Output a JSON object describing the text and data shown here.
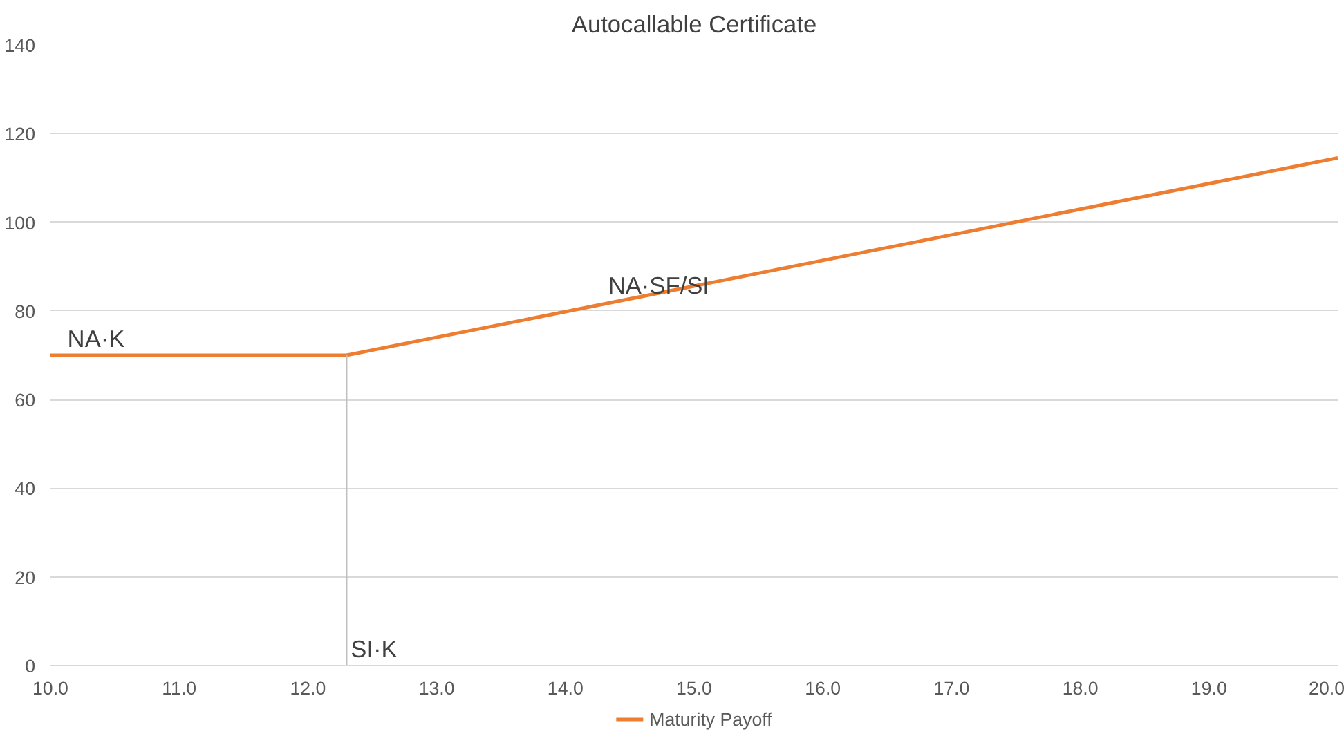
{
  "chart_data": {
    "type": "line",
    "title": "Autocallable Certificate",
    "series": [
      {
        "name": "Maturity Payoff",
        "color": "#ed7d31",
        "x": [
          10,
          12.3,
          20
        ],
        "values": [
          70,
          70,
          114.5
        ]
      },
      {
        "color": "#bfbfbf",
        "x": [
          12.3,
          12.3
        ],
        "values": [
          0,
          70
        ]
      }
    ],
    "xlim": [
      10,
      20
    ],
    "xticks": [
      {
        "value": 10,
        "label": "10.0"
      },
      {
        "value": 11,
        "label": "11.0"
      },
      {
        "value": 12,
        "label": "12.0"
      },
      {
        "value": 13,
        "label": "13.0"
      },
      {
        "value": 14,
        "label": "14.0"
      },
      {
        "value": 15,
        "label": "15.0"
      },
      {
        "value": 16,
        "label": "16.0"
      },
      {
        "value": 17,
        "label": "17.0"
      },
      {
        "value": 18,
        "label": "18.0"
      },
      {
        "value": 19,
        "label": "19.0"
      },
      {
        "value": 20,
        "label": "20.0"
      }
    ],
    "ylim": [
      0,
      140
    ],
    "yticks": [
      0,
      20,
      40,
      60,
      80,
      100,
      120,
      140
    ],
    "grid": "y",
    "legend": "bottom",
    "marker": "none",
    "line_style": "solid",
    "annotations": [
      {
        "text": "NA·K",
        "x": 10.1,
        "y": 70
      },
      {
        "text": "NA·SF/SI",
        "x": 14.3,
        "y": 82
      },
      {
        "text": "SI·K",
        "x": 12.3,
        "y": 0
      }
    ]
  }
}
